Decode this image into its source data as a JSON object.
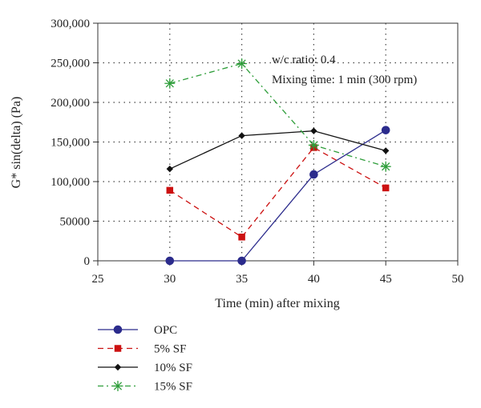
{
  "chart_data": {
    "type": "line",
    "title": "",
    "xlabel": "Time (min) after mixing",
    "ylabel": "G* sin(delta) (Pa)",
    "xlim": [
      25,
      50
    ],
    "ylim": [
      0,
      300000
    ],
    "x_ticks": [
      25,
      30,
      35,
      40,
      45,
      50
    ],
    "x_tick_labels": [
      "25",
      "30",
      "35",
      "40",
      "45",
      "50"
    ],
    "y_ticks": [
      0,
      50000,
      100000,
      150000,
      200000,
      250000,
      300000
    ],
    "y_tick_labels": [
      "0",
      "50000",
      "100,000",
      "150,000",
      "200,000",
      "250,000",
      "300,000"
    ],
    "grid": true,
    "legend_position": "bottom-left",
    "annotations": [
      "w/c ratio: 0.4",
      "Mixing time: 1 min (300 rpm)"
    ],
    "x": [
      30,
      35,
      40,
      45
    ],
    "series": [
      {
        "name": "OPC",
        "values": [
          0,
          0,
          109000,
          165000
        ],
        "color": "#2b2b8c",
        "marker": "circle",
        "dash": "solid"
      },
      {
        "name": "5% SF",
        "values": [
          89000,
          30000,
          143000,
          92000
        ],
        "color": "#cc1111",
        "marker": "square",
        "dash": "dashed"
      },
      {
        "name": "10% SF",
        "values": [
          116000,
          158000,
          164000,
          139000
        ],
        "color": "#111111",
        "marker": "diamond",
        "dash": "solid"
      },
      {
        "name": "15% SF",
        "values": [
          224000,
          249000,
          146000,
          119000
        ],
        "color": "#2e9e3a",
        "marker": "star",
        "dash": "dashdot"
      }
    ]
  }
}
